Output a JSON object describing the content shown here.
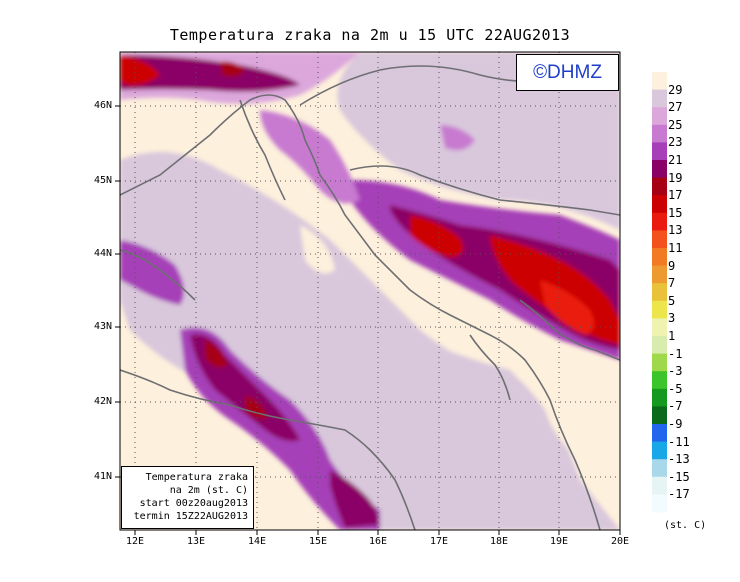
{
  "title": "Temperatura zraka na 2m u 15 UTC 22AUG2013",
  "logo_text": "©DHMZ",
  "info_box": {
    "line1": "Temperatura zraka",
    "line2": "na 2m (st. C)",
    "line3": "start 00z20aug2013",
    "line4": "termin 15Z22AUG2013"
  },
  "lat_labels": [
    "46N",
    "45N",
    "44N",
    "43N",
    "42N",
    "41N"
  ],
  "lon_labels": [
    "12E",
    "13E",
    "14E",
    "15E",
    "16E",
    "17E",
    "18E",
    "19E",
    "20E"
  ],
  "colorbar": {
    "unit": "(st. C)",
    "labels": [
      "29",
      "27",
      "25",
      "23",
      "21",
      "19",
      "17",
      "15",
      "13",
      "11",
      "9",
      "7",
      "5",
      "3",
      "1",
      "-1",
      "-3",
      "-5",
      "-7",
      "-9",
      "-11",
      "-13",
      "-15",
      "-17"
    ],
    "colors": [
      "#fdf0dc",
      "#d9c7dc",
      "#dca8dc",
      "#c77ad0",
      "#a63fb8",
      "#8b0066",
      "#a70015",
      "#cc0000",
      "#ea1a0f",
      "#f3521c",
      "#f17a22",
      "#ed9a30",
      "#e9c23a",
      "#ece64c",
      "#eef4b0",
      "#d7ecad",
      "#9fd84a",
      "#3cc52a",
      "#159a1f",
      "#0b6a19",
      "#2266ee",
      "#18a8e8",
      "#a8d8ea",
      "#e6f4f4",
      "#f2fbfd"
    ]
  }
}
